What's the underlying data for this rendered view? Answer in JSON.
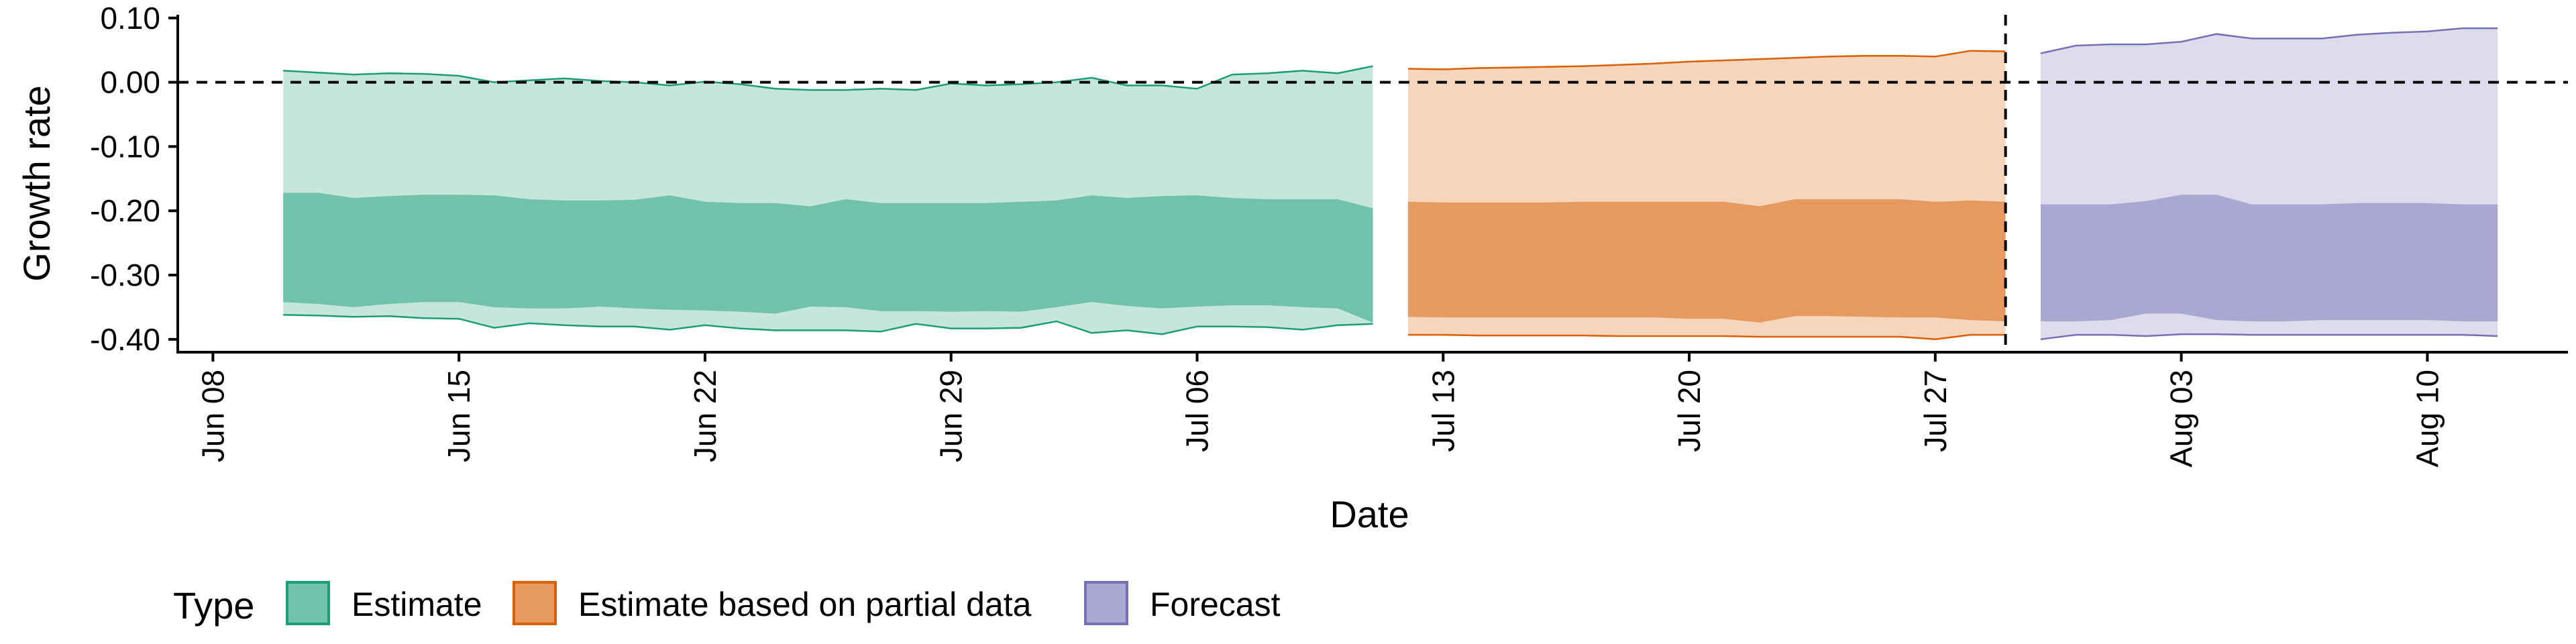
{
  "chart_data": {
    "type": "area",
    "xlabel": "Date",
    "ylabel": "Growth rate",
    "x_type": "date",
    "xlim": [
      "2020-06-07",
      "2020-08-14"
    ],
    "ylim": [
      -0.42,
      0.105
    ],
    "x_ticks": [
      {
        "date": "2020-06-08",
        "label": "Jun 08"
      },
      {
        "date": "2020-06-15",
        "label": "Jun 15"
      },
      {
        "date": "2020-06-22",
        "label": "Jun 22"
      },
      {
        "date": "2020-06-29",
        "label": "Jun 29"
      },
      {
        "date": "2020-07-06",
        "label": "Jul 06"
      },
      {
        "date": "2020-07-13",
        "label": "Jul 13"
      },
      {
        "date": "2020-07-20",
        "label": "Jul 20"
      },
      {
        "date": "2020-07-27",
        "label": "Jul 27"
      },
      {
        "date": "2020-08-03",
        "label": "Aug 03"
      },
      {
        "date": "2020-08-10",
        "label": "Aug 10"
      }
    ],
    "y_ticks": [
      {
        "value": 0.1,
        "label": "0.10"
      },
      {
        "value": 0.0,
        "label": "0.00"
      },
      {
        "value": -0.1,
        "label": "-0.10"
      },
      {
        "value": -0.2,
        "label": "-0.20"
      },
      {
        "value": -0.3,
        "label": "-0.30"
      },
      {
        "value": -0.4,
        "label": "-0.40"
      }
    ],
    "reference_lines": {
      "horizontal_y": 0.0,
      "vertical_date": "2020-07-29"
    },
    "grid": false,
    "legend": {
      "title": "Type",
      "position": "bottom-left"
    },
    "series": [
      {
        "name": "Estimate",
        "fill": "#1b9e77",
        "light": "#c6e6dc",
        "dark": "#71c2aa",
        "x": [
          "2020-06-10",
          "2020-06-11",
          "2020-06-12",
          "2020-06-13",
          "2020-06-14",
          "2020-06-15",
          "2020-06-16",
          "2020-06-17",
          "2020-06-18",
          "2020-06-19",
          "2020-06-20",
          "2020-06-21",
          "2020-06-22",
          "2020-06-23",
          "2020-06-24",
          "2020-06-25",
          "2020-06-26",
          "2020-06-27",
          "2020-06-28",
          "2020-06-29",
          "2020-06-30",
          "2020-07-01",
          "2020-07-02",
          "2020-07-03",
          "2020-07-04",
          "2020-07-05",
          "2020-07-06",
          "2020-07-07",
          "2020-07-08",
          "2020-07-09",
          "2020-07-10",
          "2020-07-11"
        ],
        "upper_outer": [
          0.018,
          0.015,
          0.012,
          0.014,
          0.013,
          0.01,
          0.0,
          0.003,
          0.006,
          0.002,
          0.0,
          -0.005,
          0.001,
          -0.003,
          -0.01,
          -0.012,
          -0.012,
          -0.01,
          -0.012,
          -0.002,
          -0.005,
          -0.003,
          0.0,
          0.007,
          -0.005,
          -0.005,
          -0.01,
          0.012,
          0.014,
          0.018,
          0.014,
          0.025
        ],
        "upper_inner": [
          -0.172,
          -0.172,
          -0.18,
          -0.177,
          -0.175,
          -0.175,
          -0.176,
          -0.182,
          -0.184,
          -0.184,
          -0.183,
          -0.176,
          -0.186,
          -0.188,
          -0.188,
          -0.193,
          -0.182,
          -0.188,
          -0.188,
          -0.188,
          -0.188,
          -0.186,
          -0.184,
          -0.176,
          -0.18,
          -0.177,
          -0.176,
          -0.18,
          -0.182,
          -0.182,
          -0.182,
          -0.196
        ],
        "lower_inner": [
          -0.342,
          -0.345,
          -0.35,
          -0.345,
          -0.342,
          -0.342,
          -0.35,
          -0.352,
          -0.352,
          -0.349,
          -0.352,
          -0.354,
          -0.355,
          -0.357,
          -0.36,
          -0.349,
          -0.35,
          -0.356,
          -0.356,
          -0.357,
          -0.356,
          -0.357,
          -0.35,
          -0.342,
          -0.348,
          -0.352,
          -0.349,
          -0.347,
          -0.347,
          -0.35,
          -0.352,
          -0.374
        ],
        "lower_outer": [
          -0.362,
          -0.363,
          -0.365,
          -0.364,
          -0.367,
          -0.368,
          -0.382,
          -0.375,
          -0.378,
          -0.38,
          -0.38,
          -0.385,
          -0.378,
          -0.383,
          -0.386,
          -0.386,
          -0.386,
          -0.388,
          -0.376,
          -0.383,
          -0.383,
          -0.382,
          -0.372,
          -0.39,
          -0.386,
          -0.392,
          -0.38,
          -0.38,
          -0.381,
          -0.385,
          -0.378,
          -0.376
        ]
      },
      {
        "name": "Estimate based on partial data",
        "fill": "#d95f02",
        "light": "#f6d5bd",
        "dark": "#e69a60",
        "x": [
          "2020-07-12",
          "2020-07-13",
          "2020-07-14",
          "2020-07-15",
          "2020-07-16",
          "2020-07-17",
          "2020-07-18",
          "2020-07-19",
          "2020-07-20",
          "2020-07-21",
          "2020-07-22",
          "2020-07-23",
          "2020-07-24",
          "2020-07-25",
          "2020-07-26",
          "2020-07-27",
          "2020-07-28",
          "2020-07-29"
        ],
        "upper_outer": [
          0.021,
          0.02,
          0.022,
          0.023,
          0.024,
          0.025,
          0.027,
          0.029,
          0.032,
          0.034,
          0.036,
          0.038,
          0.04,
          0.041,
          0.041,
          0.04,
          0.049,
          0.048
        ],
        "upper_inner": [
          -0.186,
          -0.187,
          -0.187,
          -0.187,
          -0.187,
          -0.186,
          -0.186,
          -0.186,
          -0.186,
          -0.186,
          -0.193,
          -0.182,
          -0.182,
          -0.182,
          -0.182,
          -0.186,
          -0.184,
          -0.186
        ],
        "lower_inner": [
          -0.365,
          -0.366,
          -0.366,
          -0.366,
          -0.366,
          -0.366,
          -0.366,
          -0.366,
          -0.368,
          -0.368,
          -0.374,
          -0.364,
          -0.364,
          -0.365,
          -0.366,
          -0.366,
          -0.37,
          -0.372
        ],
        "lower_outer": [
          -0.393,
          -0.393,
          -0.394,
          -0.394,
          -0.394,
          -0.394,
          -0.395,
          -0.395,
          -0.395,
          -0.395,
          -0.396,
          -0.396,
          -0.396,
          -0.396,
          -0.396,
          -0.4,
          -0.393,
          -0.393
        ]
      },
      {
        "name": "Forecast",
        "fill": "#7570b3",
        "light": "#dddcec",
        "dark": "#aaa7d2",
        "x": [
          "2020-07-30",
          "2020-07-31",
          "2020-08-01",
          "2020-08-02",
          "2020-08-03",
          "2020-08-04",
          "2020-08-05",
          "2020-08-06",
          "2020-08-07",
          "2020-08-08",
          "2020-08-09",
          "2020-08-10",
          "2020-08-11",
          "2020-08-12"
        ],
        "upper_outer": [
          0.045,
          0.057,
          0.059,
          0.059,
          0.063,
          0.075,
          0.068,
          0.068,
          0.068,
          0.074,
          0.077,
          0.079,
          0.084,
          0.084
        ],
        "upper_inner": [
          -0.19,
          -0.19,
          -0.19,
          -0.185,
          -0.175,
          -0.175,
          -0.19,
          -0.19,
          -0.19,
          -0.188,
          -0.188,
          -0.188,
          -0.19,
          -0.19
        ],
        "lower_inner": [
          -0.372,
          -0.372,
          -0.37,
          -0.36,
          -0.36,
          -0.37,
          -0.372,
          -0.372,
          -0.37,
          -0.37,
          -0.37,
          -0.37,
          -0.372,
          -0.372
        ],
        "lower_outer": [
          -0.4,
          -0.393,
          -0.393,
          -0.395,
          -0.392,
          -0.392,
          -0.393,
          -0.393,
          -0.393,
          -0.393,
          -0.393,
          -0.393,
          -0.393,
          -0.395
        ]
      }
    ]
  }
}
